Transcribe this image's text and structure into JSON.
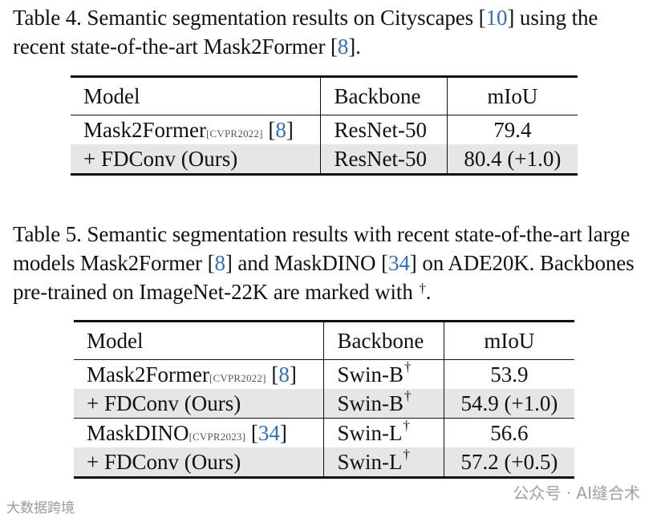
{
  "table4": {
    "caption": {
      "prefix": "Table 4.  Semantic segmentation results on Cityscapes [",
      "ref1": "10",
      "middle": "] using the recent state-of-the-art Mask2Former [",
      "ref2": "8",
      "suffix": "]."
    },
    "headers": [
      "Model",
      "Backbone",
      "mIoU"
    ],
    "rows": [
      {
        "model": "Mask2Former",
        "venue": "[CVPR2022]",
        "ref": "8",
        "backbone": "ResNet-50",
        "miou": "79.4"
      },
      {
        "model": "+ FDConv (Ours)",
        "backbone": "ResNet-50",
        "miou": "80.4 (+1.0)"
      }
    ]
  },
  "table5": {
    "caption": {
      "prefix": "Table 5. Semantic segmentation results with recent state-of-the-art large models Mask2Former [",
      "ref1": "8",
      "middle": "] and MaskDINO [",
      "ref2": "34",
      "suffix": "] on ADE20K. Backbones pre-trained on ImageNet-22K are marked with ",
      "dagger": "†",
      "end": "."
    },
    "headers": [
      "Model",
      "Backbone",
      "mIoU"
    ],
    "rows": [
      {
        "model": "Mask2Former",
        "venue": "[CVPR2022]",
        "ref": "8",
        "backbone": "Swin-B",
        "dagger": "†",
        "miou": "53.9"
      },
      {
        "model": "+ FDConv (Ours)",
        "backbone": "Swin-B",
        "dagger": "†",
        "miou": "54.9 (+1.0)"
      },
      {
        "model": "MaskDINO",
        "venue": "[CVPR2023]",
        "ref": "34",
        "backbone": "Swin-L",
        "dagger": "†",
        "miou": "56.6"
      },
      {
        "model": "+ FDConv (Ours)",
        "backbone": "Swin-L",
        "dagger": "†",
        "miou": "57.2 (+0.5)"
      }
    ]
  },
  "watermarks": {
    "left": "大数据跨境",
    "right": "公众号 · AI缝合术"
  }
}
